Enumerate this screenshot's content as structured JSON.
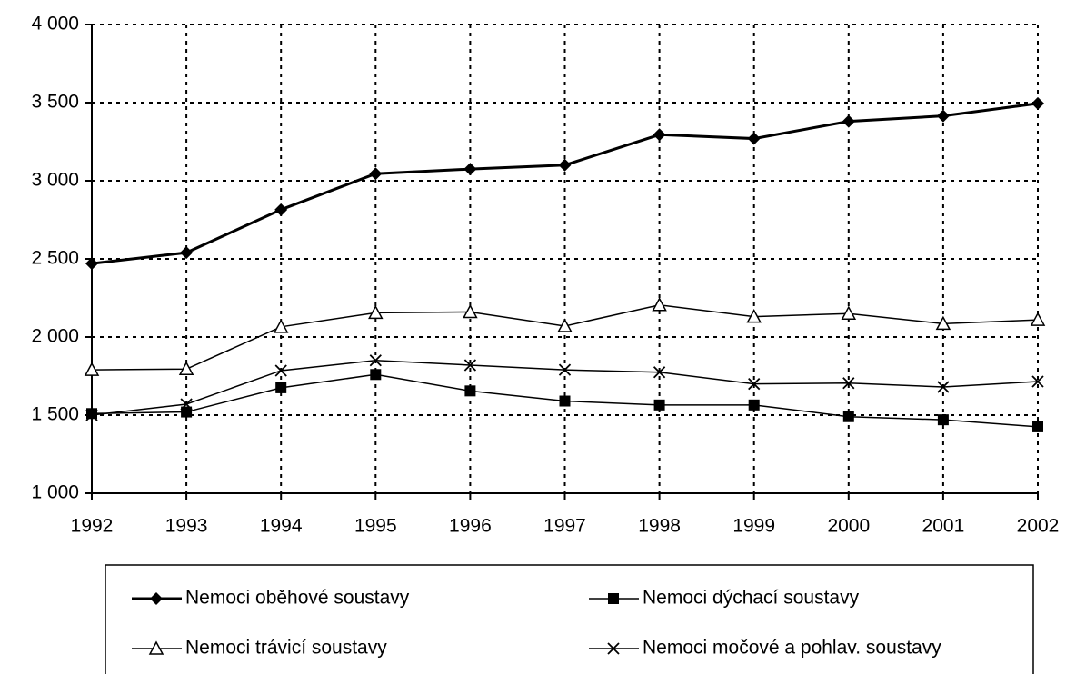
{
  "chart_data": {
    "type": "line",
    "categories": [
      "1992",
      "1993",
      "1994",
      "1995",
      "1996",
      "1997",
      "1998",
      "1999",
      "2000",
      "2001",
      "2002"
    ],
    "series": [
      {
        "name": "Nemoci oběhové soustavy",
        "color": "#000000",
        "marker": "diamond",
        "line_width": 3,
        "values": [
          2470,
          2540,
          2815,
          3045,
          3075,
          3100,
          3295,
          3270,
          3380,
          3415,
          3495
        ]
      },
      {
        "name": "Nemoci dýchací soustavy",
        "color": "#000000",
        "marker": "square",
        "line_width": 1.5,
        "values": [
          1510,
          1520,
          1675,
          1760,
          1655,
          1590,
          1565,
          1565,
          1490,
          1470,
          1425
        ]
      },
      {
        "name": "Nemoci trávicí soustavy",
        "color": "#000000",
        "marker": "triangle",
        "line_width": 1.5,
        "values": [
          1790,
          1795,
          2065,
          2155,
          2160,
          2070,
          2205,
          2130,
          2150,
          2085,
          2110
        ]
      },
      {
        "name": "Nemoci močové a pohlav. soustavy",
        "color": "#000000",
        "marker": "cross",
        "line_width": 1.5,
        "values": [
          1500,
          1570,
          1785,
          1850,
          1820,
          1790,
          1775,
          1700,
          1705,
          1680,
          1715
        ]
      }
    ],
    "ylim": [
      1000,
      4000
    ],
    "yticks": [
      {
        "value": 1000,
        "label": "1 000"
      },
      {
        "value": 1500,
        "label": "1 500"
      },
      {
        "value": 2000,
        "label": "2 000"
      },
      {
        "value": 2500,
        "label": "2 500"
      },
      {
        "value": 3000,
        "label": "3 000"
      },
      {
        "value": 3500,
        "label": "3 500"
      },
      {
        "value": 4000,
        "label": "4 000"
      }
    ],
    "grid": true,
    "legend": "bottom"
  }
}
